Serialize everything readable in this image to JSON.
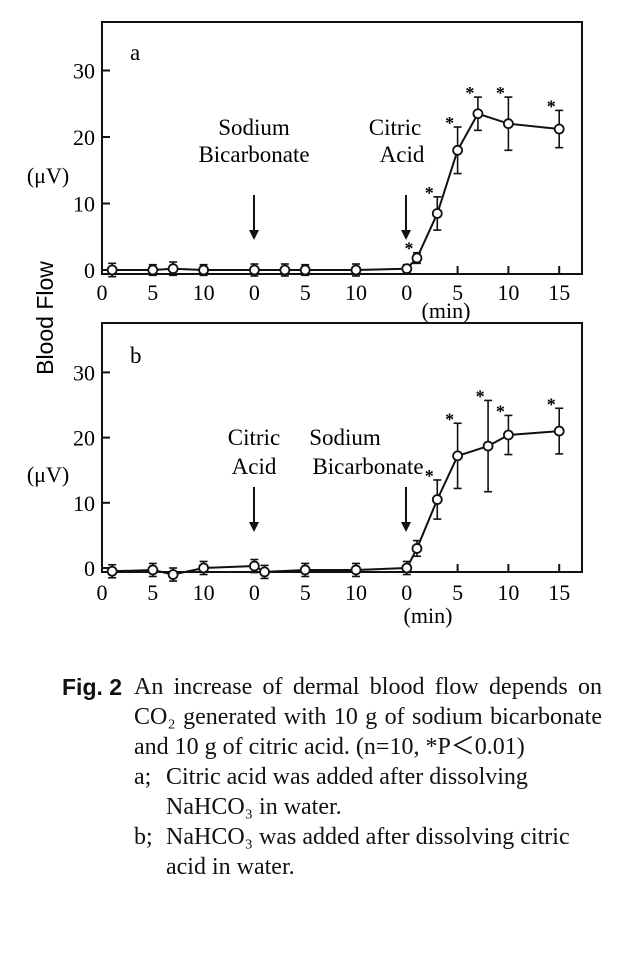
{
  "y_axis_label": "Blood Flow",
  "chart_data": [
    {
      "type": "line",
      "panel_label": "a",
      "unit_label": "(μV)",
      "xlabel": "(min)",
      "x_tick_labels": [
        "0",
        "5",
        "10",
        "0",
        "5",
        "10",
        "0",
        "5",
        "10",
        "15"
      ],
      "y_ticks": [
        "0",
        "10",
        "20",
        "30"
      ],
      "ylim": [
        0,
        37
      ],
      "annotations": [
        {
          "text": "Sodium",
          "line": 1
        },
        {
          "text": "Bicarbonate",
          "line": 2
        },
        {
          "text": "Citric",
          "line": 1
        },
        {
          "text": "Acid",
          "line": 2
        }
      ],
      "series": [
        {
          "points": [
            {
              "t": 1,
              "y": 0,
              "err": 1.0
            },
            {
              "t": 5,
              "y": 0,
              "err": 0.8
            },
            {
              "t": 7,
              "y": 0.2,
              "err": 1.0
            },
            {
              "t": 10,
              "y": 0,
              "err": 0.8
            },
            {
              "t": 15,
              "y": 0,
              "err": 0.9
            },
            {
              "t": 18,
              "y": 0,
              "err": 0.9
            },
            {
              "t": 20,
              "y": 0,
              "err": 0.8
            },
            {
              "t": 25,
              "y": 0,
              "err": 0.9
            },
            {
              "t": 30,
              "y": 0.2,
              "err": 0.6
            },
            {
              "t": 31,
              "y": 1.8,
              "err": 0.8,
              "sig": true
            },
            {
              "t": 33,
              "y": 8.5,
              "err": 2.5,
              "sig": true
            },
            {
              "t": 35,
              "y": 18,
              "err": 3.5,
              "sig": true
            },
            {
              "t": 37,
              "y": 23.5,
              "err": 2.5,
              "sig": true
            },
            {
              "t": 40,
              "y": 22,
              "err": 4.0,
              "sig": true
            },
            {
              "t": 45,
              "y": 21.2,
              "err": 2.8,
              "sig": true
            }
          ]
        }
      ]
    },
    {
      "type": "line",
      "panel_label": "b",
      "unit_label": "(μV)",
      "xlabel": "(min)",
      "x_tick_labels": [
        "0",
        "5",
        "10",
        "0",
        "5",
        "10",
        "0",
        "5",
        "10",
        "15"
      ],
      "y_ticks": [
        "0",
        "10",
        "20",
        "30"
      ],
      "ylim": [
        0,
        37
      ],
      "annotations": [
        {
          "text": "Citric",
          "line": 1
        },
        {
          "text": "Acid",
          "line": 2
        },
        {
          "text": "Sodium",
          "line": 1
        },
        {
          "text": "Bicarbonate",
          "line": 2
        }
      ],
      "series": [
        {
          "points": [
            {
              "t": 1,
              "y": -0.5,
              "err": 1.0
            },
            {
              "t": 5,
              "y": -0.3,
              "err": 1.0
            },
            {
              "t": 7,
              "y": -1,
              "err": 1.0
            },
            {
              "t": 10,
              "y": 0,
              "err": 1.0
            },
            {
              "t": 15,
              "y": 0.3,
              "err": 1.0
            },
            {
              "t": 16,
              "y": -0.6,
              "err": 1.0
            },
            {
              "t": 20,
              "y": -0.3,
              "err": 1.0
            },
            {
              "t": 25,
              "y": -0.3,
              "err": 1.0
            },
            {
              "t": 30,
              "y": 0,
              "err": 1.0
            },
            {
              "t": 31,
              "y": 3,
              "err": 1.2
            },
            {
              "t": 33,
              "y": 10.5,
              "err": 3.0,
              "sig": true
            },
            {
              "t": 35,
              "y": 17.2,
              "err": 5.0,
              "sig": true
            },
            {
              "t": 38,
              "y": 18.7,
              "err": 7.0,
              "sig": true
            },
            {
              "t": 40,
              "y": 20.4,
              "err": 3.0,
              "sig": true
            },
            {
              "t": 45,
              "y": 21,
              "err": 3.5,
              "sig": true
            }
          ]
        }
      ]
    }
  ],
  "caption": {
    "fig_label": "Fig. 2",
    "text": "An increase of dermal blood flow depends on CO₂ generated with 10 g of sodium bicarbonate and 10 g of citric acid. (n=10, *P＜0.01)",
    "items": [
      {
        "key": "a;",
        "text": "Citric acid was added after dissolving NaHCO₃ in water."
      },
      {
        "key": "b;",
        "text": "NaHCO₃ was added after dissolving citric acid in water."
      }
    ]
  }
}
